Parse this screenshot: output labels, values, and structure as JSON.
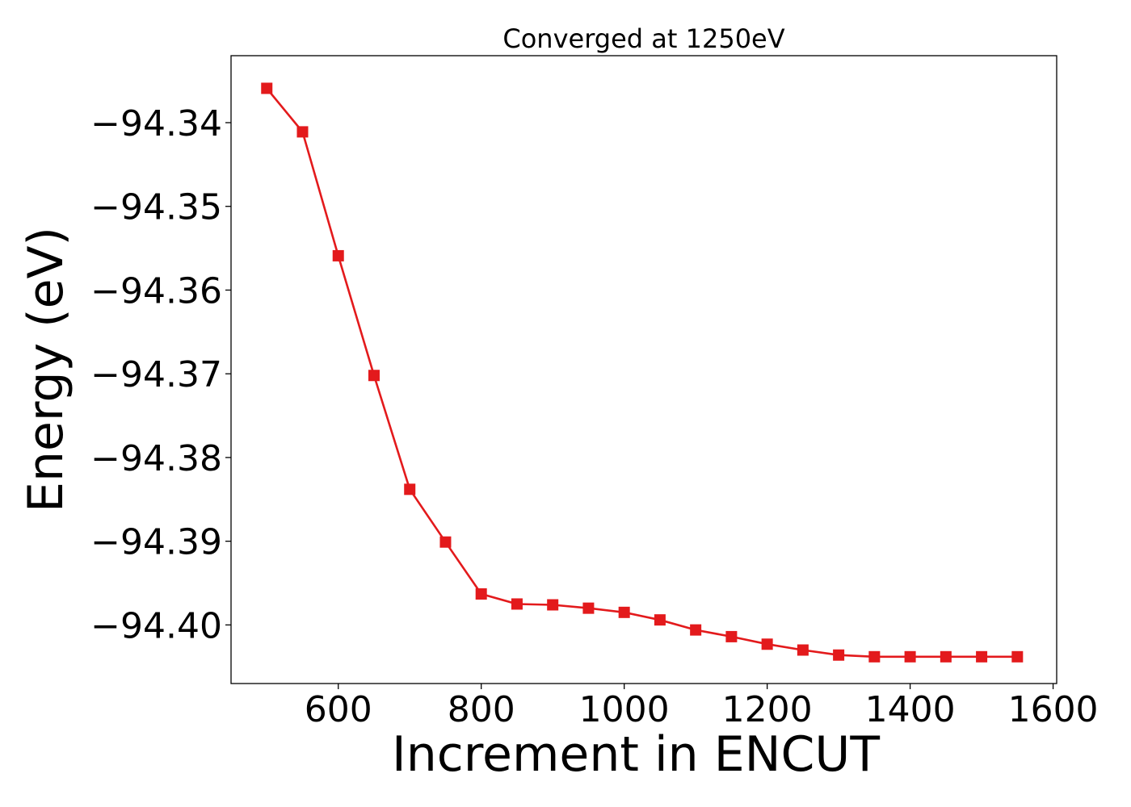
{
  "chart_data": {
    "type": "line",
    "title": "Converged at 1250eV",
    "xlabel": "Increment in ENCUT",
    "ylabel": "Energy (eV)",
    "xlim": [
      450,
      1605
    ],
    "ylim": [
      -94.407,
      -94.332
    ],
    "xticks": [
      600,
      800,
      1000,
      1200,
      1400,
      1600
    ],
    "xtick_labels": [
      "600",
      "800",
      "1000",
      "1200",
      "1400",
      "1600"
    ],
    "yticks": [
      -94.34,
      -94.35,
      -94.36,
      -94.37,
      -94.38,
      -94.39,
      -94.4
    ],
    "ytick_labels": [
      "−94.34",
      "−94.35",
      "−94.36",
      "−94.37",
      "−94.38",
      "−94.39",
      "−94.40"
    ],
    "grid": false,
    "series": [
      {
        "color": "#e31a1c",
        "marker": "square",
        "x": [
          500,
          550,
          600,
          650,
          700,
          750,
          800,
          850,
          900,
          950,
          1000,
          1050,
          1100,
          1150,
          1200,
          1250,
          1300,
          1350,
          1400,
          1450,
          1500,
          1550
        ],
        "y": [
          -94.3359,
          -94.3411,
          -94.3559,
          -94.3702,
          -94.3838,
          -94.3901,
          -94.3963,
          -94.3975,
          -94.3976,
          -94.398,
          -94.3985,
          -94.3994,
          -94.4006,
          -94.4014,
          -94.4023,
          -94.403,
          -94.4036,
          -94.4038,
          -94.4038,
          -94.4038,
          -94.4038,
          -94.4038
        ]
      }
    ]
  }
}
